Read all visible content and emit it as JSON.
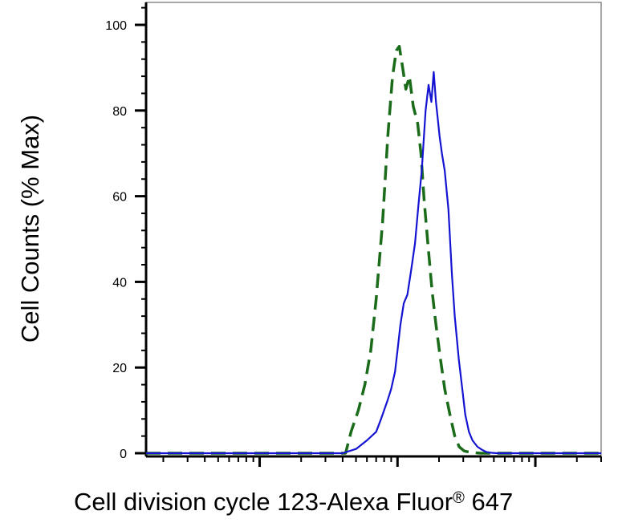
{
  "chart_data": {
    "type": "line",
    "title": "",
    "ylabel": "Cell Counts (% Max)",
    "xlabel": {
      "text": "Cell division cycle 123-Alexa Fluor",
      "mark": "®",
      "suffix": " 647"
    },
    "x_scale": "log",
    "xlim": [
      15,
      30000
    ],
    "ylim": [
      -2,
      106
    ],
    "y_ticks": [
      0,
      20,
      40,
      60,
      80,
      100
    ],
    "y_tick_labels": [
      "0",
      "20",
      "40",
      "60",
      "80",
      "100"
    ],
    "x_major_ticks": [
      100,
      1000,
      10000
    ],
    "grid": false,
    "legend": "none",
    "series": [
      {
        "style": "dashed",
        "color": "#1a6b1a",
        "x": [
          15,
          420,
          460,
          520,
          580,
          640,
          700,
          780,
          850,
          920,
          980,
          1030,
          1090,
          1150,
          1220,
          1300,
          1400,
          1480,
          1560,
          1660,
          1780,
          1900,
          2050,
          2200,
          2400,
          2600,
          2800,
          3050,
          3400,
          4000,
          5000,
          30000
        ],
        "y": [
          0,
          0,
          5,
          10,
          16,
          24,
          36,
          54,
          74,
          88,
          94,
          95,
          90,
          85,
          88,
          81,
          77,
          70,
          59,
          49,
          38,
          30,
          22,
          15,
          9,
          4,
          1.5,
          0.5,
          0.2,
          0,
          0,
          0
        ]
      },
      {
        "style": "solid",
        "color": "#1414d2",
        "x": [
          15,
          400,
          500,
          600,
          700,
          760,
          840,
          900,
          960,
          1000,
          1050,
          1110,
          1180,
          1260,
          1340,
          1420,
          1500,
          1600,
          1680,
          1760,
          1830,
          1900,
          1960,
          2020,
          2100,
          2200,
          2340,
          2480,
          2600,
          2780,
          2950,
          3100,
          3300,
          3500,
          3800,
          4100,
          4400,
          4800,
          5300,
          6000,
          7000,
          8000,
          30000
        ],
        "y": [
          0,
          0,
          1,
          3,
          5,
          8,
          12,
          15,
          19,
          24,
          30,
          35,
          37,
          43,
          49,
          58,
          66,
          80,
          86,
          82,
          89,
          82,
          78,
          74,
          70,
          66,
          57,
          42,
          32,
          22,
          15,
          9,
          5,
          3,
          1.5,
          0.8,
          0.3,
          0.1,
          0,
          0,
          0,
          0,
          0
        ]
      }
    ]
  }
}
